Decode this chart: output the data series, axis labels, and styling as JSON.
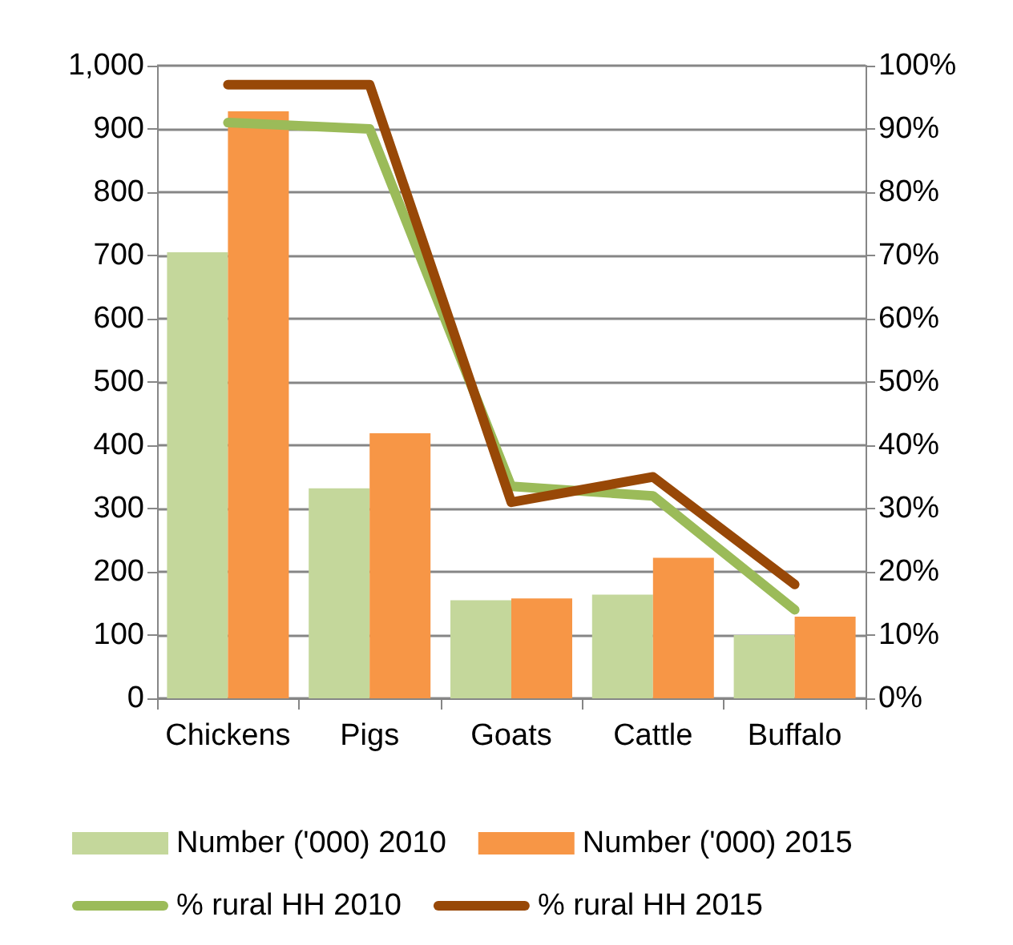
{
  "chart_data": {
    "type": "bar",
    "categories": [
      "Chickens",
      "Pigs",
      "Goats",
      "Cattle",
      "Buffalo"
    ],
    "series": [
      {
        "name": "Number ('000) 2010",
        "color": "#c4d79b",
        "values": [
          705,
          332,
          155,
          164,
          100
        ]
      },
      {
        "name": "Number ('000) 2015",
        "color": "#f79646",
        "values": [
          928,
          419,
          158,
          222,
          129
        ]
      },
      {
        "name": "% rural HH 2010",
        "type": "line",
        "axis": "y2",
        "color": "#9bbb59",
        "values": [
          91,
          90,
          33.5,
          32,
          14
        ]
      },
      {
        "name": "% rural HH 2015",
        "type": "line",
        "axis": "y2",
        "color": "#984807",
        "values": [
          97,
          97,
          31,
          35,
          18
        ]
      }
    ],
    "ylim": [
      0,
      1000
    ],
    "yticks": [
      0,
      100,
      200,
      300,
      400,
      500,
      600,
      700,
      800,
      900,
      {
        "value": 1000,
        "label": "1,000"
      }
    ],
    "y2lim": [
      0,
      100
    ],
    "y2ticks": [
      {
        "value": 0,
        "label": "0%"
      },
      {
        "value": 10,
        "label": "10%"
      },
      {
        "value": 20,
        "label": "20%"
      },
      {
        "value": 30,
        "label": "30%"
      },
      {
        "value": 40,
        "label": "40%"
      },
      {
        "value": 50,
        "label": "50%"
      },
      {
        "value": 60,
        "label": "60%"
      },
      {
        "value": 70,
        "label": "70%"
      },
      {
        "value": 80,
        "label": "80%"
      },
      {
        "value": 90,
        "label": "90%"
      },
      {
        "value": 100,
        "label": "100%"
      }
    ],
    "grid": "y",
    "legend": "bottom",
    "marker": "none",
    "line_style": "solid"
  }
}
